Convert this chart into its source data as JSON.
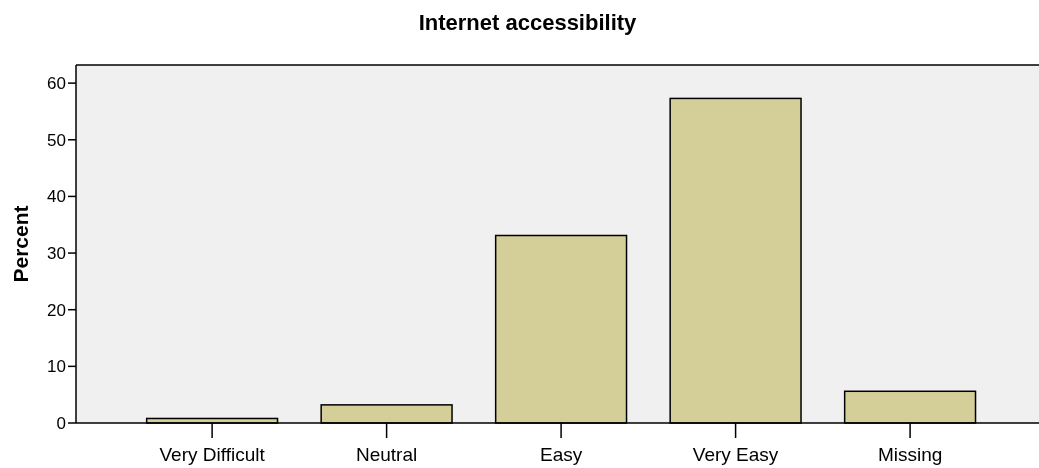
{
  "chart_data": {
    "type": "bar",
    "title": "Internet accessibility",
    "ylabel": "Percent",
    "categories": [
      "Very Difficult",
      "Neutral",
      "Easy",
      "Very Easy",
      "Missing"
    ],
    "values": [
      0.8,
      3.2,
      33.1,
      57.3,
      5.6
    ],
    "color": "#d4cf98",
    "ylim": [
      0,
      63.2
    ],
    "yticks": [
      0,
      10,
      20,
      30,
      40,
      50,
      60
    ],
    "grid": false
  }
}
